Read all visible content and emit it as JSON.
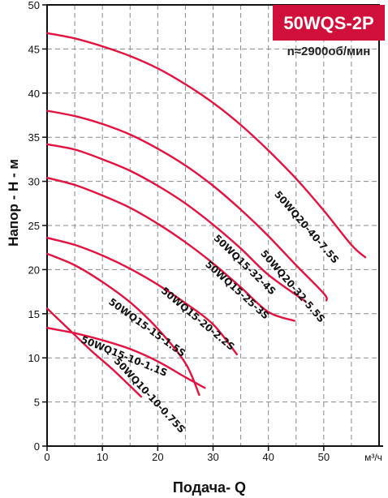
{
  "badge": {
    "model": "50WQS-2P",
    "speed": "n≈2900об/мин",
    "color": "#d0103a"
  },
  "chart_data": {
    "type": "line",
    "xlabel": "Подача- Q",
    "ylabel": "Напор - Н - м",
    "x_unit": "м³/ч",
    "xlim": [
      0,
      60
    ],
    "ylim": [
      0,
      50
    ],
    "x_ticks": [
      "0",
      "10",
      "20",
      "30",
      "40",
      "50"
    ],
    "y_ticks": [
      "0",
      "5",
      "10",
      "15",
      "20",
      "25",
      "30",
      "35",
      "40",
      "45",
      "50"
    ],
    "grid": true,
    "line_color": "#e3123f",
    "series": [
      {
        "name": "50WQ20-40-7.5S",
        "points": [
          [
            0,
            46.8
          ],
          [
            5,
            46.2
          ],
          [
            10,
            45.3
          ],
          [
            15,
            44.2
          ],
          [
            20,
            42.8
          ],
          [
            25,
            41.0
          ],
          [
            30,
            38.9
          ],
          [
            35,
            36.4
          ],
          [
            40,
            33.5
          ],
          [
            45,
            30.3
          ],
          [
            50,
            26.7
          ],
          [
            55,
            22.8
          ],
          [
            57.5,
            21.4
          ]
        ]
      },
      {
        "name": "50WQ20-32-5.5S",
        "points": [
          [
            0,
            38.0
          ],
          [
            5,
            37.4
          ],
          [
            10,
            36.5
          ],
          [
            15,
            35.3
          ],
          [
            20,
            33.7
          ],
          [
            25,
            31.8
          ],
          [
            30,
            29.5
          ],
          [
            35,
            26.8
          ],
          [
            40,
            23.8
          ],
          [
            45,
            20.5
          ],
          [
            50,
            17.3
          ],
          [
            50.5,
            16.5
          ]
        ]
      },
      {
        "name": "50WQ15-32-4S",
        "points": [
          [
            0,
            34.2
          ],
          [
            5,
            33.6
          ],
          [
            10,
            32.5
          ],
          [
            15,
            31.2
          ],
          [
            20,
            29.5
          ],
          [
            25,
            27.5
          ],
          [
            30,
            25.1
          ],
          [
            35,
            22.4
          ],
          [
            40,
            19.4
          ],
          [
            46.7,
            16.4
          ]
        ]
      },
      {
        "name": "50WQ15-25-3S",
        "points": [
          [
            0,
            30.4
          ],
          [
            5,
            29.6
          ],
          [
            10,
            28.4
          ],
          [
            15,
            27.0
          ],
          [
            20,
            25.2
          ],
          [
            25,
            23.1
          ],
          [
            30,
            20.7
          ],
          [
            35,
            18.0
          ],
          [
            40,
            15.2
          ],
          [
            44.7,
            14.2
          ]
        ]
      },
      {
        "name": "50WQ15-20-2.2S",
        "points": [
          [
            0,
            23.6
          ],
          [
            5,
            22.8
          ],
          [
            10,
            21.6
          ],
          [
            15,
            20.1
          ],
          [
            20,
            18.3
          ],
          [
            25,
            16.2
          ],
          [
            30,
            13.8
          ],
          [
            34.3,
            10.4
          ]
        ]
      },
      {
        "name": "50WQ15-15-1.5S",
        "points": [
          [
            0,
            21.8
          ],
          [
            5,
            20.5
          ],
          [
            10,
            18.6
          ],
          [
            15,
            16.3
          ],
          [
            20,
            13.3
          ],
          [
            25,
            9.4
          ],
          [
            27.5,
            5.8
          ]
        ]
      },
      {
        "name": "50WQ15-10-1.1S",
        "points": [
          [
            0,
            13.4
          ],
          [
            5,
            12.8
          ],
          [
            10,
            12.0
          ],
          [
            15,
            11.0
          ],
          [
            20,
            9.6
          ],
          [
            25,
            7.8
          ],
          [
            28.5,
            6.6
          ]
        ]
      },
      {
        "name": "50WQ10-10-0.75S",
        "points": [
          [
            0,
            15.6
          ],
          [
            4,
            13.2
          ],
          [
            8,
            10.8
          ],
          [
            12,
            8.6
          ],
          [
            17,
            5.6
          ]
        ]
      }
    ]
  }
}
